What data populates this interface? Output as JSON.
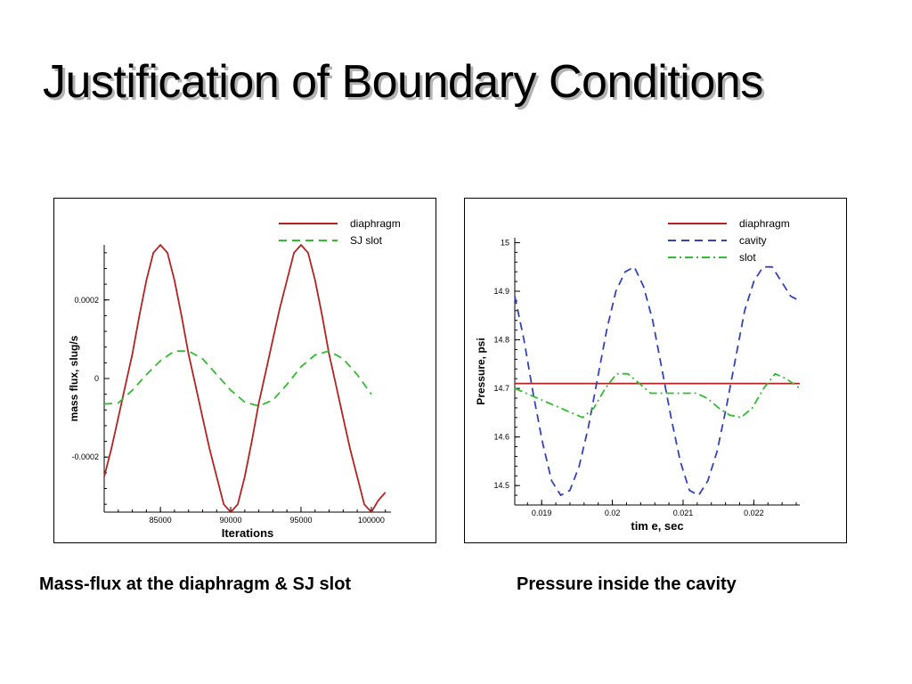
{
  "slide": {
    "title": "Justification of Boundary Conditions",
    "caption_left": "Mass-flux at the diaphragm & SJ slot",
    "caption_right": "Pressure inside the cavity"
  },
  "chart_data": [
    {
      "type": "line",
      "xlabel": "Iterations",
      "ylabel": "mass flux, slug/s",
      "xlim": [
        81000,
        101400
      ],
      "ylim": [
        -0.00034,
        0.00034
      ],
      "xticks": [
        85000,
        90000,
        95000,
        100000
      ],
      "xtick_labels": [
        "85000",
        "90000",
        "95000",
        "100000"
      ],
      "yticks": [
        -0.0002,
        0,
        0.0002
      ],
      "ytick_labels": [
        "-0.0002",
        "0",
        "0.0002"
      ],
      "grid": false,
      "legend_position": "top-right",
      "series": [
        {
          "name": "diaphragm",
          "color": "#b22222",
          "dash": "solid",
          "x": [
            81000,
            81500,
            82000,
            82500,
            83000,
            83500,
            84000,
            84500,
            85000,
            85500,
            86000,
            86500,
            87000,
            87500,
            88000,
            88500,
            89000,
            89500,
            90000,
            90500,
            91000,
            91500,
            92000,
            92500,
            93000,
            93500,
            94000,
            94500,
            95000,
            95500,
            96000,
            96500,
            97000,
            97500,
            98000,
            98500,
            99000,
            99500,
            100000,
            100500,
            101000
          ],
          "y": [
            -0.00025,
            -0.00018,
            -0.0001,
            -1.84e-05,
            6.2e-05,
            0.00016,
            0.00025,
            0.00032,
            0.00034,
            0.00032,
            0.00025,
            0.00016,
            6.2e-05,
            -1.84e-05,
            -0.0001,
            -0.00018,
            -0.00025,
            -0.00032,
            -0.00034,
            -0.00032,
            -0.00025,
            -0.00016,
            -6.2e-05,
            1.84e-05,
            0.0001,
            0.00018,
            0.00025,
            0.00032,
            0.00034,
            0.00032,
            0.00025,
            0.00016,
            6.2e-05,
            -1.84e-05,
            -0.0001,
            -0.00018,
            -0.00025,
            -0.00032,
            -0.00034,
            -0.00031,
            -0.00029
          ]
        },
        {
          "name": "SJ slot",
          "color": "#33bb33",
          "dash": "dashed",
          "x": [
            81000,
            82000,
            83000,
            84000,
            85000,
            86000,
            87000,
            88000,
            89000,
            90000,
            91000,
            92000,
            93000,
            94000,
            95000,
            96000,
            97000,
            98000,
            99000,
            100000
          ],
          "y": [
            -6.5e-05,
            -6.2e-05,
            -3e-05,
            1e-05,
            4.5e-05,
            7e-05,
            7e-05,
            5e-05,
            1e-05,
            -3e-05,
            -6e-05,
            -7e-05,
            -5.5e-05,
            -1.5e-05,
            3e-05,
            6e-05,
            7e-05,
            5e-05,
            1e-05,
            -4e-05
          ]
        }
      ]
    },
    {
      "type": "line",
      "xlabel": "tim e, sec",
      "ylabel": "Pressure, psi",
      "xlim": [
        0.01862,
        0.02265
      ],
      "ylim": [
        14.46,
        15.01
      ],
      "xticks": [
        0.019,
        0.02,
        0.021,
        0.022
      ],
      "xtick_labels": [
        "0.019",
        "0.02",
        "0.021",
        "0.022"
      ],
      "yticks": [
        14.5,
        14.6,
        14.7,
        14.8,
        14.9,
        15
      ],
      "ytick_labels": [
        "14.5",
        "14.6",
        "14.7",
        "14.8",
        "14.9",
        "15"
      ],
      "grid": false,
      "legend_position": "top-right",
      "series": [
        {
          "name": "diaphragm",
          "color": "#b22222",
          "dash": "solid",
          "x": [
            0.01862,
            0.02265
          ],
          "y": [
            14.71,
            14.71
          ]
        },
        {
          "name": "cavity",
          "color": "#3344bb",
          "dash": "dashed",
          "x": [
            0.01862,
            0.01875,
            0.01888,
            0.01901,
            0.01914,
            0.01927,
            0.0194,
            0.01953,
            0.01966,
            0.01979,
            0.01992,
            0.02005,
            0.02018,
            0.02031,
            0.02044,
            0.02057,
            0.0207,
            0.02083,
            0.02096,
            0.02109,
            0.02122,
            0.02135,
            0.02148,
            0.02161,
            0.02174,
            0.02187,
            0.022,
            0.02213,
            0.02226,
            0.02239,
            0.02252,
            0.02265
          ],
          "y": [
            14.89,
            14.8,
            14.69,
            14.59,
            14.51,
            14.48,
            14.49,
            14.54,
            14.62,
            14.72,
            14.82,
            14.9,
            14.94,
            14.95,
            14.91,
            14.84,
            14.74,
            14.64,
            14.55,
            14.49,
            14.48,
            14.51,
            14.57,
            14.66,
            14.76,
            14.86,
            14.92,
            14.95,
            14.95,
            14.92,
            14.89,
            14.88
          ]
        },
        {
          "name": "slot",
          "color": "#33bb33",
          "dash": "dashdot",
          "x": [
            0.01862,
            0.01878,
            0.01894,
            0.0191,
            0.01926,
            0.01942,
            0.01958,
            0.01974,
            0.0199,
            0.02006,
            0.02022,
            0.02038,
            0.02054,
            0.0207,
            0.02086,
            0.02102,
            0.02118,
            0.02134,
            0.0215,
            0.02166,
            0.02182,
            0.02198,
            0.02214,
            0.0223,
            0.02246,
            0.02265
          ],
          "y": [
            14.7,
            14.69,
            14.68,
            14.67,
            14.66,
            14.65,
            14.64,
            14.66,
            14.7,
            14.73,
            14.73,
            14.71,
            14.69,
            14.69,
            14.69,
            14.69,
            14.69,
            14.68,
            14.66,
            14.645,
            14.64,
            14.66,
            14.7,
            14.73,
            14.72,
            14.7
          ]
        }
      ]
    }
  ]
}
